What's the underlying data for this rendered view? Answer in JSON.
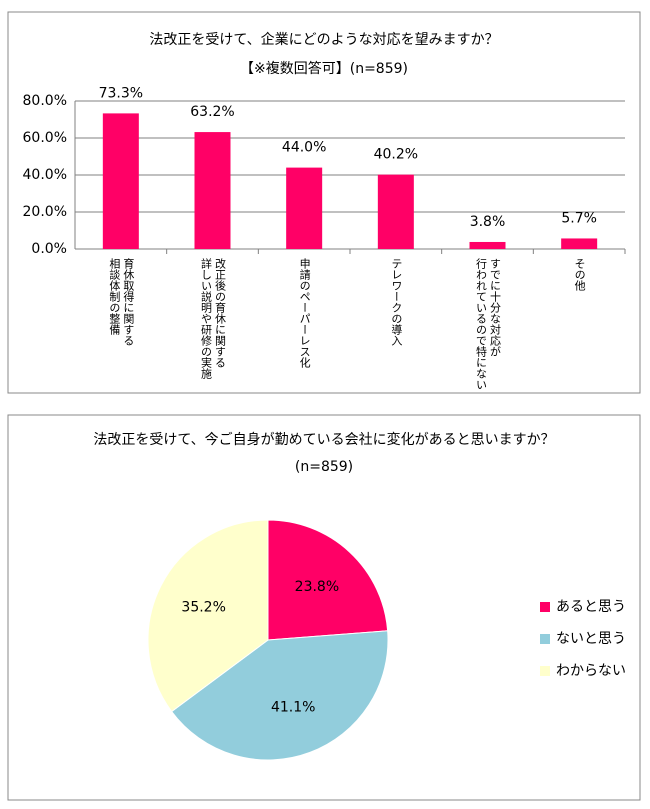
{
  "chart_data": [
    {
      "type": "bar",
      "title": "法改正を受けて、企業にどのような対応を望みますか？",
      "subtitle": "【※複数回答可】(n=859)",
      "categories": [
        [
          "育休取得に関する",
          "相談体制の整備"
        ],
        [
          "改正後の育休に関する",
          "詳しい説明や研修の実施"
        ],
        [
          "申請のペーパーレス化"
        ],
        [
          "テレワークの導入"
        ],
        [
          "すでに十分な対応が",
          "行われているので特にない"
        ],
        [
          "その他"
        ]
      ],
      "values": [
        73.3,
        63.2,
        44.0,
        40.2,
        3.8,
        5.7
      ],
      "value_labels": [
        "73.3%",
        "63.2%",
        "44.0%",
        "40.2%",
        "3.8%",
        "5.7%"
      ],
      "color": "#ff0066",
      "ylim": [
        0,
        80
      ],
      "yticks": [
        {
          "value": 0,
          "label": "0.0%"
        },
        {
          "value": 20,
          "label": "20.0%"
        },
        {
          "value": 40,
          "label": "40.0%"
        },
        {
          "value": 60,
          "label": "60.0%"
        },
        {
          "value": 80,
          "label": "80.0%"
        }
      ],
      "grid": true
    },
    {
      "type": "pie",
      "title": "法改正を受けて、今ご自身が勤めている会社に変化があると思いますか？",
      "subtitle": "(n=859)",
      "categories": [
        "あると思う",
        "ないと思う",
        "わからない"
      ],
      "values": [
        23.8,
        41.1,
        35.2
      ],
      "value_labels": [
        "23.8%",
        "41.1%",
        "35.2%"
      ],
      "colors": [
        "#ff0066",
        "#92cddc",
        "#ffffcc"
      ]
    }
  ]
}
